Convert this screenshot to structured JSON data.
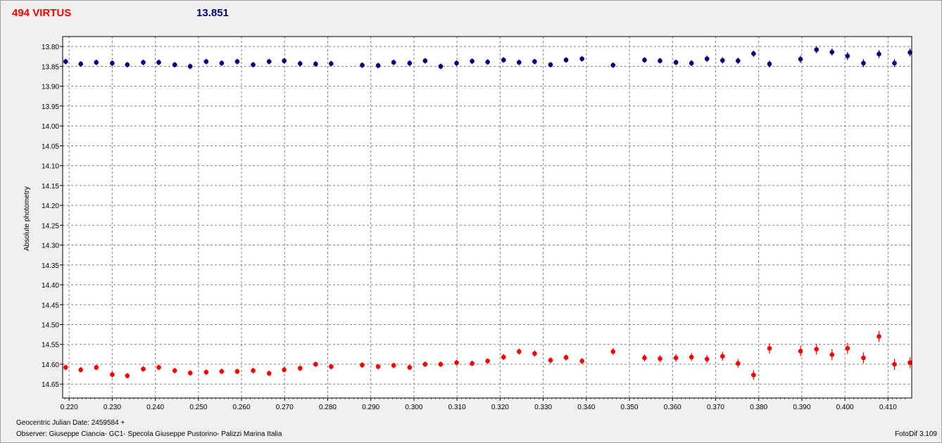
{
  "header": {
    "object_name": "494 VIRTUS",
    "reference_magnitude": "13.851"
  },
  "footer": {
    "jd_label": "Geocentric Julian Date: 2459584 +",
    "observer_label": "Observer: Giuseppe Ciancia- GC1- Specola Giuseppe Pustorino- Palizzi Marina Italia",
    "software_label": "FotoDif 3.109"
  },
  "colors": {
    "series_blue": "#000080",
    "series_red": "#ff0000",
    "title_red": "#ff0000",
    "grid": "#808080"
  },
  "chart_data": {
    "type": "scatter",
    "title": "",
    "xlabel": "",
    "ylabel": "Absolute photometry",
    "xlim": [
      0.2185,
      0.4155
    ],
    "ylim": [
      13.775,
      14.685
    ],
    "y_inverted": true,
    "grid": true,
    "x_ticks": [
      "0.220",
      "0.230",
      "0.240",
      "0.250",
      "0.260",
      "0.270",
      "0.280",
      "0.290",
      "0.300",
      "0.310",
      "0.320",
      "0.330",
      "0.340",
      "0.350",
      "0.360",
      "0.370",
      "0.380",
      "0.390",
      "0.400",
      "0.410"
    ],
    "y_ticks": [
      "13.80",
      "13.85",
      "13.90",
      "13.95",
      "14.00",
      "14.05",
      "14.10",
      "14.15",
      "14.20",
      "14.25",
      "14.30",
      "14.35",
      "14.40",
      "14.45",
      "14.50",
      "14.55",
      "14.60",
      "14.65"
    ],
    "series": [
      {
        "color": "#000080",
        "points": [
          [
            0.2192,
            13.838,
            0.005
          ],
          [
            0.2227,
            13.844,
            0.005
          ],
          [
            0.2263,
            13.84,
            0.005
          ],
          [
            0.23,
            13.842,
            0.005
          ],
          [
            0.2335,
            13.846,
            0.005
          ],
          [
            0.2372,
            13.84,
            0.005
          ],
          [
            0.2408,
            13.84,
            0.005
          ],
          [
            0.2445,
            13.846,
            0.005
          ],
          [
            0.2481,
            13.85,
            0.005
          ],
          [
            0.2518,
            13.838,
            0.005
          ],
          [
            0.2554,
            13.842,
            0.005
          ],
          [
            0.259,
            13.838,
            0.005
          ],
          [
            0.2627,
            13.846,
            0.005
          ],
          [
            0.2664,
            13.838,
            0.005
          ],
          [
            0.2699,
            13.836,
            0.005
          ],
          [
            0.2736,
            13.843,
            0.005
          ],
          [
            0.2772,
            13.844,
            0.005
          ],
          [
            0.2808,
            13.843,
            0.005
          ],
          [
            0.288,
            13.847,
            0.005
          ],
          [
            0.2917,
            13.848,
            0.005
          ],
          [
            0.2953,
            13.84,
            0.005
          ],
          [
            0.299,
            13.842,
            0.005
          ],
          [
            0.3026,
            13.836,
            0.005
          ],
          [
            0.3062,
            13.85,
            0.005
          ],
          [
            0.3099,
            13.842,
            0.005
          ],
          [
            0.3135,
            13.837,
            0.005
          ],
          [
            0.3171,
            13.839,
            0.005
          ],
          [
            0.3208,
            13.834,
            0.005
          ],
          [
            0.3244,
            13.84,
            0.005
          ],
          [
            0.328,
            13.838,
            0.005
          ],
          [
            0.3317,
            13.846,
            0.005
          ],
          [
            0.3353,
            13.834,
            0.005
          ],
          [
            0.339,
            13.831,
            0.005
          ],
          [
            0.3462,
            13.847,
            0.005
          ],
          [
            0.3535,
            13.834,
            0.006
          ],
          [
            0.3571,
            13.836,
            0.006
          ],
          [
            0.3608,
            13.84,
            0.007
          ],
          [
            0.3644,
            13.842,
            0.008
          ],
          [
            0.368,
            13.831,
            0.008
          ],
          [
            0.3716,
            13.835,
            0.008
          ],
          [
            0.3752,
            13.836,
            0.008
          ],
          [
            0.3788,
            13.818,
            0.008
          ],
          [
            0.3825,
            13.844,
            0.009
          ],
          [
            0.3897,
            13.832,
            0.009
          ],
          [
            0.3934,
            13.808,
            0.009
          ],
          [
            0.397,
            13.814,
            0.009
          ],
          [
            0.4006,
            13.824,
            0.01
          ],
          [
            0.4043,
            13.842,
            0.01
          ],
          [
            0.4079,
            13.819,
            0.01
          ],
          [
            0.4115,
            13.842,
            0.01
          ],
          [
            0.4151,
            13.815,
            0.01
          ]
        ]
      },
      {
        "color": "#ff0000",
        "points": [
          [
            0.2192,
            14.608,
            0.006
          ],
          [
            0.2227,
            14.614,
            0.006
          ],
          [
            0.2263,
            14.608,
            0.006
          ],
          [
            0.23,
            14.626,
            0.006
          ],
          [
            0.2335,
            14.629,
            0.006
          ],
          [
            0.2372,
            14.612,
            0.006
          ],
          [
            0.2408,
            14.608,
            0.006
          ],
          [
            0.2445,
            14.616,
            0.006
          ],
          [
            0.2481,
            14.622,
            0.006
          ],
          [
            0.2518,
            14.62,
            0.006
          ],
          [
            0.2554,
            14.618,
            0.006
          ],
          [
            0.259,
            14.618,
            0.006
          ],
          [
            0.2627,
            14.616,
            0.006
          ],
          [
            0.2664,
            14.623,
            0.007
          ],
          [
            0.2699,
            14.614,
            0.007
          ],
          [
            0.2736,
            14.61,
            0.007
          ],
          [
            0.2772,
            14.6,
            0.007
          ],
          [
            0.2808,
            14.606,
            0.007
          ],
          [
            0.288,
            14.602,
            0.007
          ],
          [
            0.2917,
            14.606,
            0.007
          ],
          [
            0.2953,
            14.603,
            0.007
          ],
          [
            0.299,
            14.608,
            0.007
          ],
          [
            0.3026,
            14.6,
            0.007
          ],
          [
            0.3062,
            14.6,
            0.007
          ],
          [
            0.3099,
            14.596,
            0.007
          ],
          [
            0.3135,
            14.598,
            0.007
          ],
          [
            0.3171,
            14.592,
            0.007
          ],
          [
            0.3208,
            14.582,
            0.008
          ],
          [
            0.3244,
            14.568,
            0.008
          ],
          [
            0.328,
            14.573,
            0.008
          ],
          [
            0.3317,
            14.59,
            0.008
          ],
          [
            0.3353,
            14.583,
            0.008
          ],
          [
            0.339,
            14.592,
            0.008
          ],
          [
            0.3462,
            14.568,
            0.009
          ],
          [
            0.3535,
            14.584,
            0.009
          ],
          [
            0.3571,
            14.586,
            0.009
          ],
          [
            0.3608,
            14.584,
            0.01
          ],
          [
            0.3644,
            14.582,
            0.01
          ],
          [
            0.368,
            14.587,
            0.01
          ],
          [
            0.3716,
            14.58,
            0.011
          ],
          [
            0.3752,
            14.598,
            0.011
          ],
          [
            0.3788,
            14.627,
            0.012
          ],
          [
            0.3825,
            14.56,
            0.013
          ],
          [
            0.3897,
            14.567,
            0.013
          ],
          [
            0.3934,
            14.562,
            0.014
          ],
          [
            0.397,
            14.576,
            0.014
          ],
          [
            0.4006,
            14.56,
            0.014
          ],
          [
            0.4043,
            14.584,
            0.014
          ],
          [
            0.4079,
            14.53,
            0.014
          ],
          [
            0.4115,
            14.6,
            0.014
          ],
          [
            0.4151,
            14.596,
            0.014
          ]
        ]
      }
    ]
  }
}
